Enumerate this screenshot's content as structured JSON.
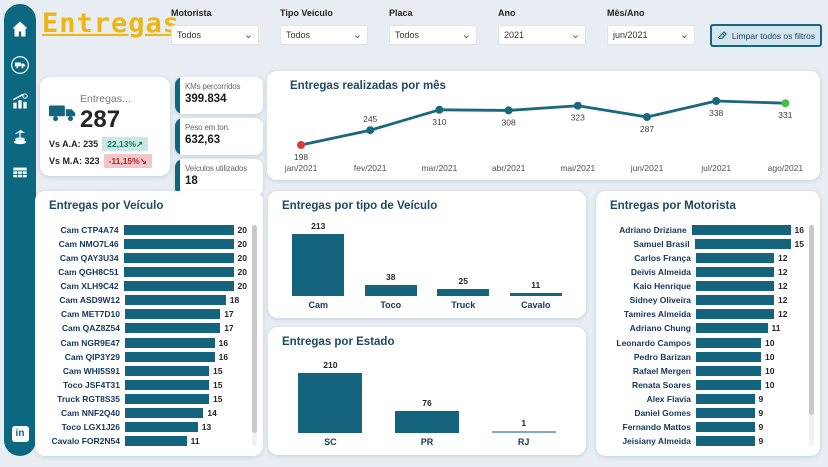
{
  "app": {
    "title": "Entregas"
  },
  "colors": {
    "accent": "#0C6880",
    "bar": "#15647E",
    "title_yellow": "#EFB611",
    "line": "#19687F",
    "point_first": "#DF3A34",
    "point_last": "#44BE44",
    "badge_up_bg": "#CBE7E1",
    "badge_up_text": "#0F7B6F",
    "badge_down_bg": "#F2C5C8",
    "badge_down_text": "#A12B31"
  },
  "sidebar": {
    "icons": [
      "home-icon",
      "deliveries-truck-icon",
      "chart-increase-icon",
      "port-crane-icon",
      "data-table-icon"
    ],
    "linkedin_label": "in"
  },
  "filters": [
    {
      "label": "Motorista",
      "value": "Todos"
    },
    {
      "label": "Tipo Veículo",
      "value": "Todos"
    },
    {
      "label": "Placa",
      "value": "Todos"
    },
    {
      "label": "Ano",
      "value": "2021"
    },
    {
      "label": "Mês/Ano",
      "value": "jun/2021"
    }
  ],
  "clear_button": {
    "label": "Limpar todos os filtros"
  },
  "kpis": {
    "main": {
      "label": "Entregas...",
      "value": "287",
      "vs_aa_label": "Vs A.A: 235",
      "vs_aa_badge": "22,13%",
      "vs_aa_arrow": "↗",
      "vs_ma_label": "Vs M.A: 323",
      "vs_ma_badge": "-11,15%",
      "vs_ma_arrow": "↘"
    },
    "cards": [
      {
        "label": "KMs percorridos",
        "value": "399.834"
      },
      {
        "label": "Peso em ton.",
        "value": "632,63"
      },
      {
        "label": "Veículos utilizados",
        "value": "18"
      }
    ]
  },
  "chart_data": [
    {
      "id": "monthly",
      "type": "line",
      "title": "Entregas realizadas por mês",
      "x": [
        "jan/2021",
        "fev/2021",
        "mar/2021",
        "abr/2021",
        "mai/2021",
        "jun/2021",
        "jul/2021",
        "ago/2021"
      ],
      "values": [
        198,
        245,
        310,
        308,
        323,
        287,
        338,
        331
      ],
      "label_position": [
        "below",
        "above",
        "below",
        "below",
        "below",
        "below",
        "below",
        "below"
      ],
      "ylim": [
        198,
        338
      ],
      "grid": false,
      "legend": "none"
    },
    {
      "id": "by_vehicle",
      "type": "bar",
      "orientation": "horizontal",
      "title": "Entregas por Veículo",
      "categories": [
        "Cam CTP4A74",
        "Cam NMO7L46",
        "Cam QAY3U34",
        "Cam QGH8C51",
        "Cam XLH9C42",
        "Cam ASD9W12",
        "Cam MET7D10",
        "Cam QAZ8Z54",
        "Cam NGR9E47",
        "Cam QIP3Y29",
        "Cam WHI5S91",
        "Toco JSF4T31",
        "Truck RGT8S35",
        "Cam NNF2Q40",
        "Toco LGX1J26",
        "Cavalo FOR2N54"
      ],
      "values": [
        20,
        20,
        20,
        20,
        20,
        18,
        17,
        17,
        16,
        16,
        15,
        15,
        15,
        14,
        13,
        11
      ]
    },
    {
      "id": "by_vehicle_type",
      "type": "bar",
      "orientation": "vertical",
      "title": "Entregas por tipo de Veículo",
      "categories": [
        "Cam",
        "Toco",
        "Truck",
        "Cavalo"
      ],
      "values": [
        213,
        38,
        25,
        11
      ]
    },
    {
      "id": "by_state",
      "type": "bar",
      "orientation": "vertical",
      "title": "Entregas por Estado",
      "categories": [
        "SC",
        "PR",
        "RJ"
      ],
      "values": [
        210,
        76,
        1
      ]
    },
    {
      "id": "by_driver",
      "type": "bar",
      "orientation": "horizontal",
      "title": "Entregas por Motorista",
      "categories": [
        "Adriano Driziane",
        "Samuel Brasil",
        "Carlos França",
        "Deivis Almeida",
        "Kaio Henrique",
        "Sidney Oliveira",
        "Tamires Almeida",
        "Adriano Chung",
        "Leonardo Campos",
        "Pedro Barizan",
        "Rafael Mergen",
        "Renata Soares",
        "Alex Flavia",
        "Daniel Gomes",
        "Fernando Mattos",
        "Jeisiany Almeida"
      ],
      "values": [
        16,
        15,
        12,
        12,
        12,
        12,
        12,
        11,
        10,
        10,
        10,
        10,
        9,
        9,
        9,
        9
      ]
    }
  ]
}
